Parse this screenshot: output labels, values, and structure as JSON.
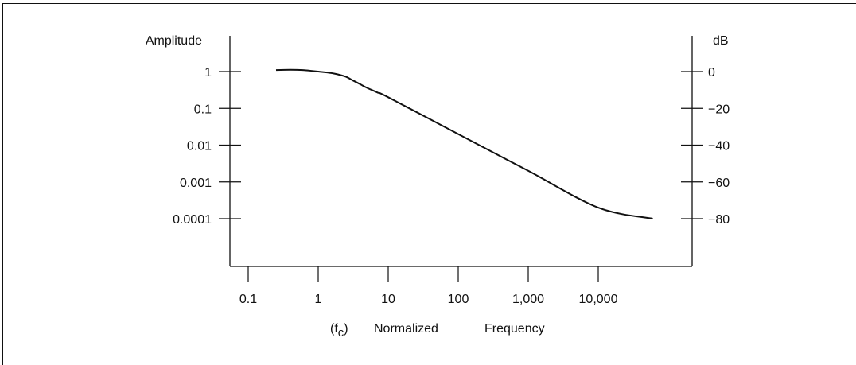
{
  "chart_data": {
    "type": "line",
    "left_axis": {
      "label": "Amplitude",
      "scale": "log",
      "ticks": [
        1,
        0.1,
        0.01,
        0.001,
        0.0001
      ],
      "tick_labels": [
        "1",
        "0.1",
        "0.01",
        "0.001",
        "0.0001"
      ]
    },
    "right_axis": {
      "label": "dB",
      "ticks": [
        0,
        -20,
        -40,
        -60,
        -80
      ],
      "tick_labels": [
        "0",
        "−20",
        "−40",
        "−60",
        "−80"
      ]
    },
    "x_axis": {
      "scale": "log",
      "ticks": [
        0.1,
        1,
        10,
        100,
        1000,
        10000
      ],
      "tick_labels": [
        "0.1",
        "1",
        "10",
        "100",
        "1,000",
        "10,000"
      ],
      "label_prefix": "(f",
      "label_subscript": "c",
      "label_suffix": ")",
      "label_words": [
        "Normalized",
        "Frequency"
      ]
    },
    "series": [
      {
        "color": "#111111",
        "x": [
          0.25,
          0.4,
          0.6,
          1,
          1.5,
          2,
          2.5,
          3,
          4,
          5,
          7,
          10,
          100,
          1000,
          10000,
          60000
        ],
        "y": [
          1.1,
          1.12,
          1.1,
          1.0,
          0.92,
          0.82,
          0.72,
          0.6,
          0.45,
          0.36,
          0.27,
          0.2,
          0.02,
          0.002,
          0.0002,
          0.0001
        ]
      }
    ],
    "grid": false
  }
}
